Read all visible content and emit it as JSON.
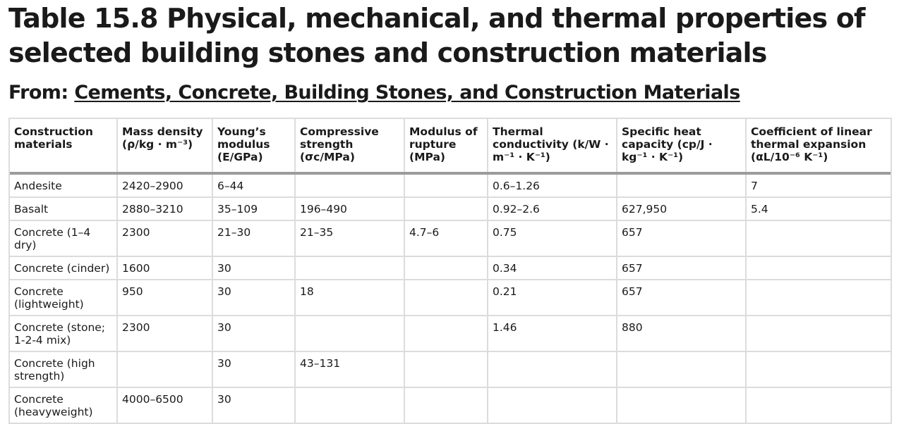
{
  "title": "Table 15.8 Physical, mechanical, and thermal properties of selected building stones and construction materials",
  "source": {
    "prefix": "From:",
    "link_text": "Cements, Concrete, Building Stones, and Construction Materials"
  },
  "table": {
    "headers": [
      "Construction materials",
      "Mass density (ρ/kg · m⁻³)",
      "Young’s modulus (E/GPa)",
      "Compressive strength (σc/MPa)",
      "Modulus of rupture (MPa)",
      "Thermal conductivity (k/W · m⁻¹ · K⁻¹)",
      "Specific heat capacity (cp/J · kg⁻¹ · K⁻¹)",
      "Coefficient of linear thermal expansion (αL/10⁻⁶ K⁻¹)"
    ],
    "rows": [
      [
        "Andesite",
        "2420–2900",
        "6–44",
        "",
        "",
        "0.6–1.26",
        "",
        "7"
      ],
      [
        "Basalt",
        "2880–3210",
        "35–109",
        "196–490",
        "",
        "0.92–2.6",
        "627,950",
        "5.4"
      ],
      [
        "Concrete (1–4 dry)",
        "2300",
        "21–30",
        "21–35",
        "4.7–6",
        "0.75",
        "657",
        ""
      ],
      [
        "Concrete (cinder)",
        "1600",
        "30",
        "",
        "",
        "0.34",
        "657",
        ""
      ],
      [
        "Concrete (lightweight)",
        "950",
        "30",
        "18",
        "",
        "0.21",
        "657",
        ""
      ],
      [
        "Concrete (stone; 1-2-4 mix)",
        "2300",
        "30",
        "",
        "",
        "1.46",
        "880",
        ""
      ],
      [
        "Concrete (high strength)",
        "",
        "30",
        "43–131",
        "",
        "",
        "",
        ""
      ],
      [
        "Concrete (heavyweight)",
        "4000–6500",
        "30",
        "",
        "",
        "",
        "",
        ""
      ]
    ]
  }
}
